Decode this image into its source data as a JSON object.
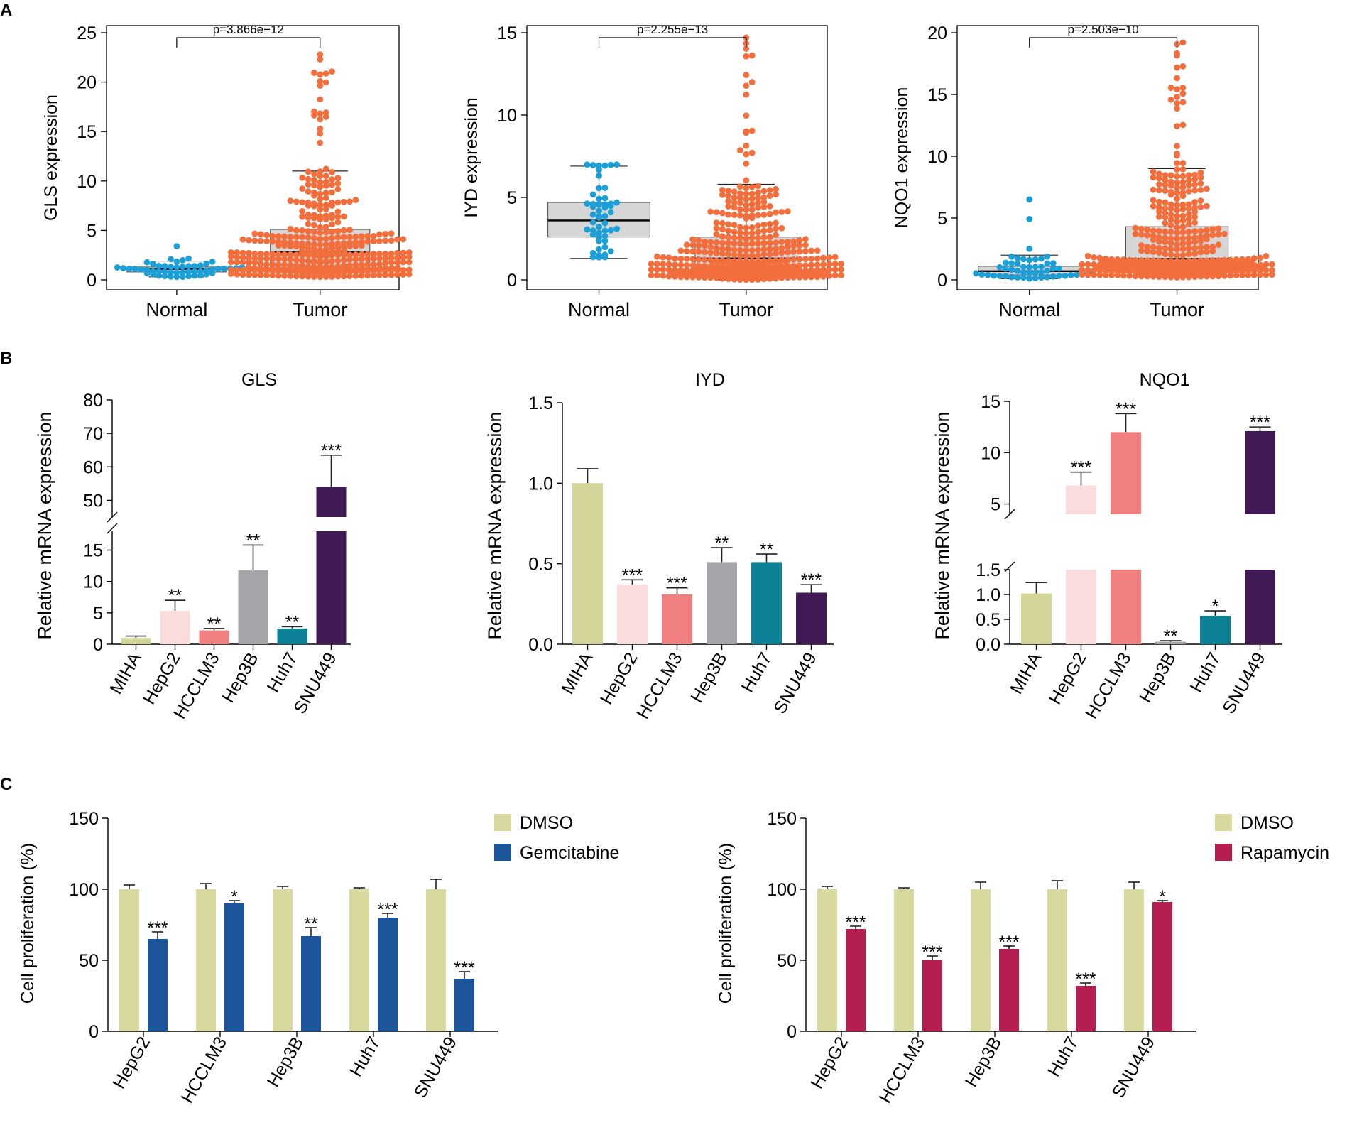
{
  "panel_labels": [
    "A",
    "B",
    "C"
  ],
  "colors": {
    "normal_dot": "#1b9fd6",
    "tumor_dot": "#f26e3c",
    "box_fill": "#d6d6d6",
    "MIHA": "#d3d59b",
    "HepG2": "#fbdcdc",
    "HCCLM3": "#f08080",
    "Hep3B": "#a3a5a8",
    "Huh7": "#0d8196",
    "SNU449": "#3f1a55",
    "DMSO": "#d8d99e",
    "Gemcitabine": "#1d559a",
    "Rapamycin": "#b51f4f"
  },
  "chart_data": [
    {
      "id": "A1",
      "type": "scatter",
      "ylabel": "GLS expression",
      "ylim": [
        0,
        25
      ],
      "yticks": [
        "0",
        "5",
        "10",
        "15",
        "20",
        "25"
      ],
      "ytick_values": [
        0,
        5,
        10,
        15,
        20,
        25
      ],
      "categories": [
        "Normal",
        "Tumor"
      ],
      "pvalue": "p=3.866e−12",
      "groups": [
        {
          "name": "Normal",
          "box": {
            "q1": 0.8,
            "median": 1.1,
            "q3": 1.3,
            "whisker_low": 0.3,
            "whisker_high": 1.9
          },
          "n": 50,
          "max": 3.4
        },
        {
          "name": "Tumor",
          "box": {
            "q1": 1.2,
            "median": 2.8,
            "q3": 5.1,
            "whisker_low": 0.3,
            "whisker_high": 11.0
          },
          "n": 370,
          "max": 22.8
        }
      ]
    },
    {
      "id": "A2",
      "type": "scatter",
      "ylabel": "IYD expression",
      "ylim": [
        0,
        15
      ],
      "yticks": [
        "0",
        "5",
        "10",
        "15"
      ],
      "ytick_values": [
        0,
        5,
        10,
        15
      ],
      "categories": [
        "Normal",
        "Tumor"
      ],
      "pvalue": "p=2.255e−13",
      "groups": [
        {
          "name": "Normal",
          "box": {
            "q1": 2.6,
            "median": 3.6,
            "q3": 4.7,
            "whisker_low": 1.3,
            "whisker_high": 6.9
          },
          "n": 50,
          "max": 7.0
        },
        {
          "name": "Tumor",
          "box": {
            "q1": 0.5,
            "median": 1.3,
            "q3": 2.6,
            "whisker_low": 0.0,
            "whisker_high": 5.8
          },
          "n": 370,
          "max": 14.7
        }
      ]
    },
    {
      "id": "A3",
      "type": "scatter",
      "ylabel": "NQO1 expression",
      "ylim": [
        0,
        20
      ],
      "yticks": [
        "0",
        "5",
        "10",
        "15",
        "20"
      ],
      "ytick_values": [
        0,
        5,
        10,
        15,
        20
      ],
      "categories": [
        "Normal",
        "Tumor"
      ],
      "pvalue": "p=2.503e−10",
      "groups": [
        {
          "name": "Normal",
          "box": {
            "q1": 0.4,
            "median": 0.7,
            "q3": 1.1,
            "whisker_low": 0.1,
            "whisker_high": 2.0
          },
          "n": 50,
          "max": 6.5
        },
        {
          "name": "Tumor",
          "box": {
            "q1": 0.9,
            "median": 1.7,
            "q3": 4.3,
            "whisker_low": 0.2,
            "whisker_high": 9.0
          },
          "n": 370,
          "max": 19.2
        }
      ]
    },
    {
      "id": "B1",
      "type": "bar",
      "title": "GLS",
      "ylabel": "Relative mRNA expression",
      "categories": [
        "MIHA",
        "HepG2",
        "HCCLM3",
        "Hep3B",
        "Huh7",
        "SNU449"
      ],
      "values": [
        1.0,
        5.3,
        2.2,
        11.8,
        2.5,
        54.0
      ],
      "errors": [
        0.3,
        1.7,
        0.3,
        4.0,
        0.3,
        9.5
      ],
      "significance": [
        "",
        "**",
        "**",
        "**",
        "**",
        "***"
      ],
      "axis_break": {
        "lower": [
          0,
          18
        ],
        "upper": [
          45,
          80
        ]
      },
      "yticks_lower": [
        "0",
        "5",
        "10",
        "15"
      ],
      "ytick_values_lower": [
        0,
        5,
        10,
        15
      ],
      "yticks_upper": [
        "50",
        "60",
        "70",
        "80"
      ],
      "ytick_values_upper": [
        50,
        60,
        70,
        80
      ]
    },
    {
      "id": "B2",
      "type": "bar",
      "title": "IYD",
      "ylabel": "Relative mRNA expression",
      "categories": [
        "MIHA",
        "HepG2",
        "HCCLM3",
        "Hep3B",
        "Huh7",
        "SNU449"
      ],
      "values": [
        1.0,
        0.37,
        0.31,
        0.51,
        0.51,
        0.32
      ],
      "errors": [
        0.09,
        0.03,
        0.04,
        0.09,
        0.05,
        0.05
      ],
      "significance": [
        "",
        "***",
        "***",
        "**",
        "**",
        "***"
      ],
      "ylim": [
        0,
        1.5
      ],
      "yticks": [
        "0.0",
        "0.5",
        "1.0",
        "1.5"
      ],
      "ytick_values": [
        0,
        0.5,
        1.0,
        1.5
      ]
    },
    {
      "id": "B3",
      "type": "bar",
      "title": "NQO1",
      "ylabel": "Relative mRNA expression",
      "categories": [
        "MIHA",
        "HepG2",
        "HCCLM3",
        "Hep3B",
        "Huh7",
        "SNU449"
      ],
      "values": [
        1.02,
        6.8,
        12.0,
        0.05,
        0.57,
        12.1
      ],
      "errors": [
        0.22,
        1.3,
        1.8,
        0.02,
        0.1,
        0.4
      ],
      "significance": [
        "",
        "***",
        "***",
        "**",
        "*",
        "***"
      ],
      "axis_break": {
        "lower": [
          0,
          1.5
        ],
        "upper": [
          4,
          15
        ]
      },
      "yticks_lower": [
        "0.0",
        "0.5",
        "1.0",
        "1.5"
      ],
      "ytick_values_lower": [
        0,
        0.5,
        1.0,
        1.5
      ],
      "yticks_upper": [
        "5",
        "10",
        "15"
      ],
      "ytick_values_upper": [
        5,
        10,
        15
      ]
    },
    {
      "id": "C1",
      "type": "bar",
      "ylabel": "Cell proliferation (%)",
      "ylim": [
        0,
        150
      ],
      "yticks": [
        "0",
        "50",
        "100",
        "150"
      ],
      "ytick_values": [
        0,
        50,
        100,
        150
      ],
      "categories": [
        "HepG2",
        "HCCLM3",
        "Hep3B",
        "Huh7",
        "SNU449"
      ],
      "legend": [
        "DMSO",
        "Gemcitabine"
      ],
      "series": [
        {
          "name": "DMSO",
          "values": [
            100,
            100,
            100,
            100,
            100
          ],
          "errors": [
            3,
            4,
            2,
            1,
            7
          ]
        },
        {
          "name": "Gemcitabine",
          "values": [
            65,
            90,
            67,
            80,
            37
          ],
          "errors": [
            5,
            2,
            6,
            3,
            5
          ],
          "significance": [
            "***",
            "*",
            "**",
            "***",
            "***"
          ]
        }
      ]
    },
    {
      "id": "C2",
      "type": "bar",
      "ylabel": "Cell proliferation (%)",
      "ylim": [
        0,
        150
      ],
      "yticks": [
        "0",
        "50",
        "100",
        "150"
      ],
      "ytick_values": [
        0,
        50,
        100,
        150
      ],
      "categories": [
        "HepG2",
        "HCCLM3",
        "Hep3B",
        "Huh7",
        "SNU449"
      ],
      "legend": [
        "DMSO",
        "Rapamycin"
      ],
      "series": [
        {
          "name": "DMSO",
          "values": [
            100,
            100,
            100,
            100,
            100
          ],
          "errors": [
            2,
            1,
            5,
            6,
            5
          ]
        },
        {
          "name": "Rapamycin",
          "values": [
            72,
            50,
            58,
            32,
            91
          ],
          "errors": [
            2,
            3,
            2,
            2,
            1
          ],
          "significance": [
            "***",
            "***",
            "***",
            "***",
            "*"
          ]
        }
      ]
    }
  ]
}
